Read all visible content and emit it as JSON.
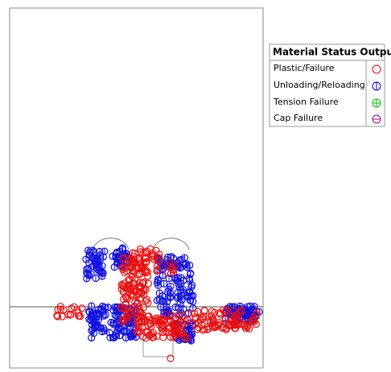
{
  "legend": {
    "title": "Material Status Output",
    "items": [
      {
        "label": "Plastic/Failure"
      },
      {
        "label": "Unloading/Reloading"
      },
      {
        "label": "Tension Failure"
      },
      {
        "label": "Cap Failure"
      }
    ]
  }
}
